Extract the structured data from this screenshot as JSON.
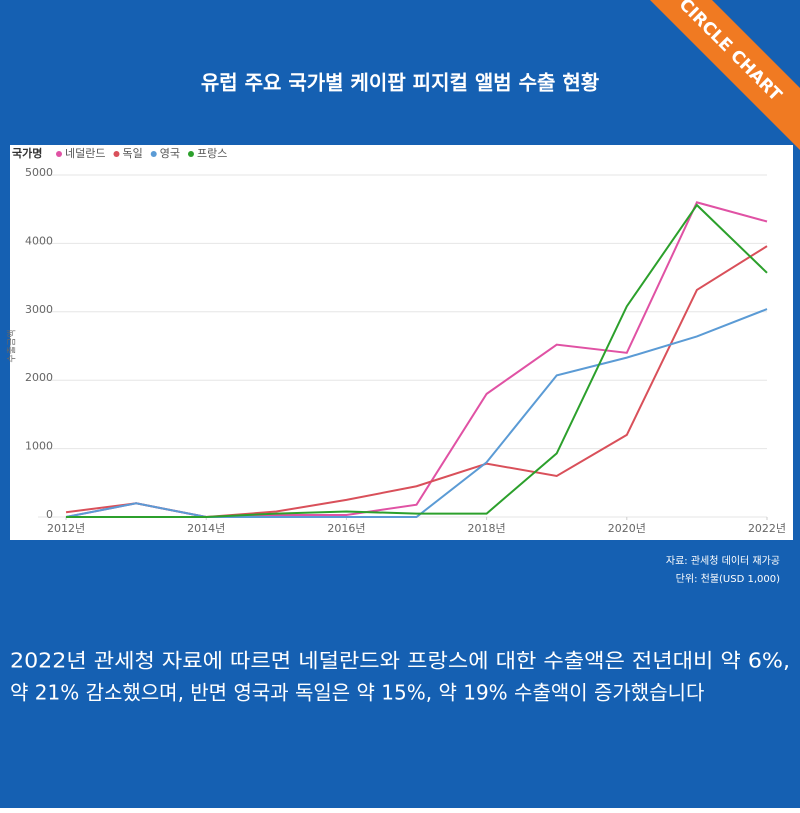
{
  "ribbon": "CIRCLE CHART",
  "chart_data": {
    "type": "line",
    "title": "유럽 주요 국가별 케이팝 피지컬 앨범 수출 현황",
    "legend_title": "국가명",
    "y_label": "수출금액",
    "x": [
      2012,
      2013,
      2014,
      2015,
      2016,
      2017,
      2018,
      2019,
      2020,
      2021,
      2022
    ],
    "series": [
      {
        "name": "네덜란드",
        "color": "#e052a4",
        "values": [
          0,
          200,
          0,
          30,
          30,
          180,
          1800,
          2520,
          2400,
          4600,
          4320
        ]
      },
      {
        "name": "독일",
        "color": "#d9505a",
        "values": [
          70,
          200,
          0,
          80,
          250,
          450,
          780,
          600,
          1200,
          3320,
          3960
        ]
      },
      {
        "name": "영국",
        "color": "#5b9bd5",
        "values": [
          0,
          200,
          0,
          0,
          0,
          0,
          800,
          2070,
          2330,
          2640,
          3040
        ]
      },
      {
        "name": "프랑스",
        "color": "#2ca02c",
        "values": [
          0,
          0,
          0,
          50,
          80,
          50,
          50,
          930,
          3080,
          4560,
          3570
        ]
      }
    ],
    "xlim": [
      2011.6,
      2022
    ],
    "ylim": [
      0,
      5000
    ],
    "xticks": [
      {
        "value": 2012,
        "label": "2012년"
      },
      {
        "value": 2014,
        "label": "2014년"
      },
      {
        "value": 2016,
        "label": "2016년"
      },
      {
        "value": 2018,
        "label": "2018년"
      },
      {
        "value": 2020,
        "label": "2020년"
      },
      {
        "value": 2022,
        "label": "2022년"
      }
    ],
    "yticks": [
      0,
      1000,
      2000,
      3000,
      4000,
      5000
    ],
    "source": "자료: 관세청 데이터 재가공",
    "unit": "단위: 천불(USD 1,000)"
  },
  "body": [
    "2022년 관세청 자료에 따르면 네덜란드와 프랑스에 대한 수출액은 전년대비 약 6%,",
    "약 21% 감소했으며, 반면 영국과 독일은 약 15%, 약 19% 수출액이 증가했습니다"
  ]
}
